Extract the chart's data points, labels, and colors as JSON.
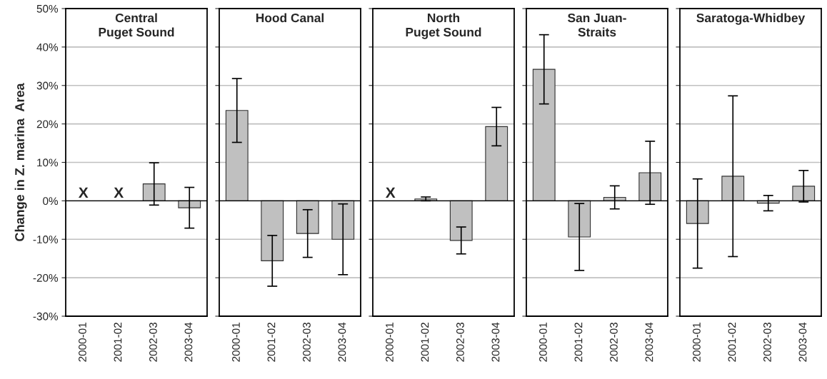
{
  "chart_data": [
    {
      "type": "bar",
      "title": "Central\nPuget Sound",
      "ylabel": "Change in Z. marina  Area",
      "categories": [
        "2000-01",
        "2001-02",
        "2002-03",
        "2003-04"
      ],
      "values": [
        null,
        null,
        4.4,
        -1.8
      ],
      "errors": [
        null,
        null,
        5.5,
        5.3
      ],
      "color": "#c0c0c0",
      "ylim": [
        -30,
        50
      ],
      "yticks": [
        {
          "value": -30,
          "label": "-30%"
        },
        {
          "value": -20,
          "label": "-20%"
        },
        {
          "value": -10,
          "label": "-10%"
        },
        {
          "value": 0,
          "label": "0%"
        },
        {
          "value": 10,
          "label": "10%"
        },
        {
          "value": 20,
          "label": "20%"
        },
        {
          "value": 30,
          "label": "30%"
        },
        {
          "value": 40,
          "label": "40%"
        },
        {
          "value": 50,
          "label": "50%"
        }
      ],
      "grid": "y",
      "annotations": [
        "X",
        "X"
      ]
    },
    {
      "type": "bar",
      "title": "Hood Canal",
      "categories": [
        "2000-01",
        "2001-02",
        "2002-03",
        "2003-04"
      ],
      "values": [
        23.5,
        -15.6,
        -8.5,
        -10.0
      ],
      "errors": [
        8.3,
        6.6,
        6.2,
        9.2
      ],
      "color": "#c0c0c0",
      "ylim": [
        -30,
        50
      ],
      "yticks": [
        -30,
        -20,
        -10,
        0,
        10,
        20,
        30,
        40,
        50
      ],
      "grid": "y",
      "tick_labels": "x"
    },
    {
      "type": "bar",
      "title": "North\nPuget Sound",
      "categories": [
        "2000-01",
        "2001-02",
        "2002-03",
        "2003-04"
      ],
      "values": [
        null,
        0.5,
        -10.3,
        19.3
      ],
      "errors": [
        null,
        0.5,
        3.5,
        5.0
      ],
      "color": "#c0c0c0",
      "ylim": [
        -30,
        50
      ],
      "yticks": [
        -30,
        -20,
        -10,
        0,
        10,
        20,
        30,
        40,
        50
      ],
      "grid": "y",
      "tick_labels": "x",
      "annotations": [
        "X"
      ]
    },
    {
      "type": "bar",
      "title": "San Juan-\nStraits",
      "categories": [
        "2000-01",
        "2001-02",
        "2002-03",
        "2003-04"
      ],
      "values": [
        34.2,
        -9.4,
        0.9,
        7.3
      ],
      "errors": [
        9.0,
        8.7,
        3.0,
        8.2
      ],
      "color": "#c0c0c0",
      "ylim": [
        -30,
        50
      ],
      "yticks": [
        -30,
        -20,
        -10,
        0,
        10,
        20,
        30,
        40,
        50
      ],
      "grid": "y",
      "tick_labels": "x"
    },
    {
      "type": "bar",
      "title": "Saratoga-Whidbey",
      "categories": [
        "2000-01",
        "2001-02",
        "2002-03",
        "2003-04"
      ],
      "values": [
        -5.9,
        6.4,
        -0.6,
        3.8
      ],
      "errors": [
        11.6,
        20.9,
        2.0,
        4.1
      ],
      "color": "#c0c0c0",
      "ylim": [
        -30,
        50
      ],
      "yticks": [
        -30,
        -20,
        -10,
        0,
        10,
        20,
        30,
        40,
        50
      ],
      "grid": "y",
      "tick_labels": "x"
    }
  ]
}
